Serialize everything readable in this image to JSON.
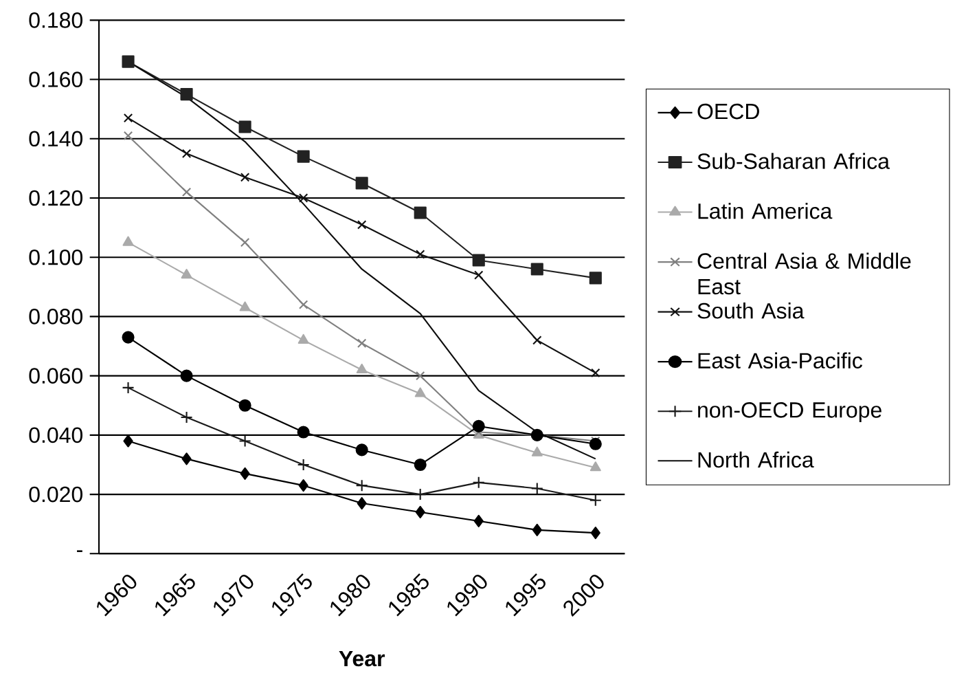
{
  "chart_data": {
    "type": "line",
    "xlabel": "Year",
    "categories": [
      "1960",
      "1965",
      "1970",
      "1975",
      "1980",
      "1985",
      "1990",
      "1995",
      "2000"
    ],
    "ylim": [
      0,
      0.18
    ],
    "yticks": [
      {
        "value": 0,
        "label": "-"
      },
      {
        "value": 0.02,
        "label": "0.020"
      },
      {
        "value": 0.04,
        "label": "0.040"
      },
      {
        "value": 0.06,
        "label": "0.060"
      },
      {
        "value": 0.08,
        "label": "0.080"
      },
      {
        "value": 0.1,
        "label": "0.100"
      },
      {
        "value": 0.12,
        "label": "0.120"
      },
      {
        "value": 0.14,
        "label": "0.140"
      },
      {
        "value": 0.16,
        "label": "0.160"
      },
      {
        "value": 0.18,
        "label": "0.180"
      }
    ],
    "grid": "y",
    "legend": "right",
    "line_style": "solid",
    "series": [
      {
        "name": "OECD",
        "color": "#000000",
        "marker": "diamond",
        "values": [
          0.038,
          0.032,
          0.027,
          0.023,
          0.017,
          0.014,
          0.011,
          0.008,
          0.007
        ]
      },
      {
        "name": "Sub-Saharan Africa",
        "color": "#222222",
        "marker": "square",
        "values": [
          0.166,
          0.155,
          0.144,
          0.134,
          0.125,
          0.115,
          0.099,
          0.096,
          0.093
        ]
      },
      {
        "name": "Latin America",
        "color": "#aaaaaa",
        "marker": "triangle",
        "values": [
          0.105,
          0.094,
          0.083,
          0.072,
          0.062,
          0.054,
          0.04,
          0.034,
          0.029
        ]
      },
      {
        "name": "Central Asia & Middle East",
        "color": "#808080",
        "marker": "cross",
        "values": [
          0.141,
          0.122,
          0.105,
          0.084,
          0.071,
          0.06,
          0.041,
          0.04,
          0.038
        ]
      },
      {
        "name": "South Asia",
        "color": "#111111",
        "marker": "cross",
        "values": [
          0.147,
          0.135,
          0.127,
          0.12,
          0.111,
          0.101,
          0.094,
          0.072,
          0.061
        ]
      },
      {
        "name": "East Asia-Pacific",
        "color": "#000000",
        "marker": "circle",
        "values": [
          0.073,
          0.06,
          0.05,
          0.041,
          0.035,
          0.03,
          0.043,
          0.04,
          0.037
        ]
      },
      {
        "name": "non-OECD Europe",
        "color": "#1a1a1a",
        "marker": "plus",
        "values": [
          0.056,
          0.046,
          0.038,
          0.03,
          0.023,
          0.02,
          0.024,
          0.022,
          0.018
        ]
      },
      {
        "name": "North Africa",
        "color": "#0d0d0d",
        "marker": "none",
        "values": [
          0.166,
          0.154,
          0.139,
          0.118,
          0.096,
          0.081,
          0.055,
          0.041,
          0.032
        ]
      }
    ]
  }
}
